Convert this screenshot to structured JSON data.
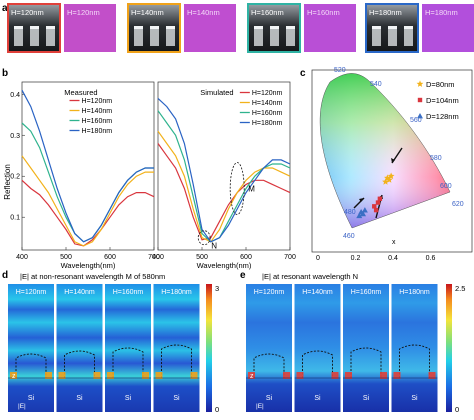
{
  "panel_labels": {
    "a": "a",
    "b": "b",
    "c": "c",
    "d": "d",
    "e": "e"
  },
  "panel_a": {
    "items": [
      {
        "sem_label": "H=120nm",
        "color_label": "H=120nm",
        "frame": "#e0403a",
        "swatch": "#c24fc9"
      },
      {
        "sem_label": "H=140nm",
        "color_label": "H=140nm",
        "frame": "#f0a21a",
        "swatch": "#bf4ed0"
      },
      {
        "sem_label": "H=160nm",
        "color_label": "H=160nm",
        "frame": "#2fb3a4",
        "swatch": "#b94fd6"
      },
      {
        "sem_label": "H=180nm",
        "color_label": "H=180nm",
        "frame": "#2a68c8",
        "swatch": "#b24fdc"
      }
    ]
  },
  "chart_data": [
    {
      "type": "line",
      "subtitle": "Measured",
      "ylabel": "Reflection",
      "xlabel": "Wavelength(nm)",
      "xlim": [
        400,
        700
      ],
      "ylim": [
        0.02,
        0.43
      ],
      "xticks": [
        400,
        500,
        600,
        700
      ],
      "yticks": [
        0.1,
        0.2,
        0.3,
        0.4
      ],
      "legend_position": "top-right",
      "series": [
        {
          "name": "H=120nm",
          "color": "#d9363e",
          "x": [
            400,
            420,
            440,
            460,
            480,
            500,
            520,
            540,
            560,
            580,
            600,
            620,
            640,
            660,
            680,
            700
          ],
          "y": [
            0.19,
            0.17,
            0.155,
            0.13,
            0.1,
            0.07,
            0.035,
            0.03,
            0.045,
            0.07,
            0.1,
            0.13,
            0.15,
            0.16,
            0.16,
            0.15
          ]
        },
        {
          "name": "H=140nm",
          "color": "#f2b21b",
          "x": [
            400,
            420,
            440,
            460,
            480,
            500,
            520,
            540,
            560,
            580,
            600,
            620,
            640,
            660,
            680,
            700
          ],
          "y": [
            0.25,
            0.22,
            0.19,
            0.16,
            0.12,
            0.08,
            0.04,
            0.03,
            0.04,
            0.07,
            0.11,
            0.15,
            0.18,
            0.2,
            0.21,
            0.21
          ]
        },
        {
          "name": "H=160nm",
          "color": "#2fb38e",
          "x": [
            400,
            420,
            440,
            460,
            480,
            500,
            520,
            540,
            560,
            580,
            600,
            620,
            640,
            660,
            680,
            700
          ],
          "y": [
            0.33,
            0.31,
            0.27,
            0.21,
            0.15,
            0.1,
            0.06,
            0.04,
            0.05,
            0.08,
            0.12,
            0.16,
            0.19,
            0.21,
            0.22,
            0.22
          ]
        },
        {
          "name": "H=180nm",
          "color": "#2a63c4",
          "x": [
            400,
            420,
            440,
            460,
            480,
            500,
            520,
            540,
            560,
            580,
            600,
            620,
            640,
            660,
            680,
            700
          ],
          "y": [
            0.41,
            0.37,
            0.31,
            0.24,
            0.17,
            0.11,
            0.06,
            0.04,
            0.05,
            0.08,
            0.12,
            0.16,
            0.19,
            0.21,
            0.22,
            0.22
          ]
        }
      ]
    },
    {
      "type": "line",
      "subtitle": "Simulated",
      "xlabel": "Wavelength(nm)",
      "xlim": [
        400,
        700
      ],
      "ylim": [
        0.02,
        0.43
      ],
      "xticks": [
        400,
        500,
        600,
        700
      ],
      "legend_position": "top-right",
      "annotations": [
        "M",
        "N"
      ],
      "series": [
        {
          "name": "H=120nm",
          "color": "#d9363e",
          "x": [
            400,
            420,
            440,
            460,
            480,
            500,
            520,
            540,
            560,
            580,
            600,
            620,
            640,
            660,
            680,
            700
          ],
          "y": [
            0.28,
            0.25,
            0.22,
            0.17,
            0.1,
            0.045,
            0.05,
            0.09,
            0.13,
            0.16,
            0.18,
            0.19,
            0.19,
            0.18,
            0.17,
            0.16
          ]
        },
        {
          "name": "H=140nm",
          "color": "#f2b21b",
          "x": [
            400,
            420,
            440,
            460,
            480,
            500,
            520,
            540,
            560,
            580,
            600,
            620,
            640,
            660,
            680,
            700
          ],
          "y": [
            0.31,
            0.28,
            0.25,
            0.2,
            0.12,
            0.05,
            0.04,
            0.07,
            0.12,
            0.16,
            0.19,
            0.21,
            0.22,
            0.22,
            0.21,
            0.2
          ]
        },
        {
          "name": "H=160nm",
          "color": "#2fb38e",
          "x": [
            400,
            420,
            440,
            460,
            480,
            500,
            520,
            540,
            560,
            580,
            600,
            620,
            640,
            660,
            680,
            700
          ],
          "y": [
            0.36,
            0.33,
            0.3,
            0.24,
            0.15,
            0.06,
            0.04,
            0.05,
            0.09,
            0.13,
            0.17,
            0.2,
            0.22,
            0.23,
            0.23,
            0.22
          ]
        },
        {
          "name": "H=180nm",
          "color": "#2a63c4",
          "x": [
            400,
            420,
            440,
            460,
            480,
            500,
            520,
            540,
            560,
            580,
            600,
            620,
            640,
            660,
            680,
            700
          ],
          "y": [
            0.39,
            0.37,
            0.34,
            0.28,
            0.18,
            0.07,
            0.04,
            0.05,
            0.08,
            0.12,
            0.16,
            0.19,
            0.22,
            0.24,
            0.24,
            0.23
          ]
        }
      ]
    },
    {
      "type": "scatter",
      "xlabel": "x",
      "xlim": [
        0,
        0.8
      ],
      "ylim": [
        0,
        0.9
      ],
      "xticks": [
        0,
        0.2,
        0.4,
        0.6
      ],
      "locus_labels": [
        "460",
        "480",
        "520",
        "540",
        "560",
        "580",
        "600",
        "620"
      ],
      "legend_position": "top-right",
      "series": [
        {
          "name": "D=80nm",
          "color": "#f2b21b",
          "marker": "star",
          "x": [
            0.36,
            0.37,
            0.38,
            0.39
          ],
          "y": [
            0.34,
            0.36,
            0.35,
            0.37
          ]
        },
        {
          "name": "D=104nm",
          "color": "#d9363e",
          "marker": "square",
          "x": [
            0.3,
            0.31,
            0.32,
            0.33
          ],
          "y": [
            0.21,
            0.19,
            0.23,
            0.25
          ]
        },
        {
          "name": "D=128nm",
          "color": "#3b6fc4",
          "marker": "triangle",
          "x": [
            0.22,
            0.23,
            0.24,
            0.25
          ],
          "y": [
            0.16,
            0.18,
            0.17,
            0.19
          ]
        }
      ]
    }
  ],
  "panel_d": {
    "title": "|E| at non-resonant wavelength M of 580nm",
    "labels": [
      "H=120nm",
      "H=140nm",
      "H=160nm",
      "H=180nm"
    ],
    "scale_max": "3",
    "scale_min": "0",
    "axis_label": "z",
    "field_label": "|E|",
    "substrate": "Si"
  },
  "panel_e": {
    "title": "|E| at resonant wavelength N",
    "labels": [
      "H=120nm",
      "H=140nm",
      "H=160nm",
      "H=180nm"
    ],
    "scale_max": "2.5",
    "scale_min": "0",
    "axis_label": "z",
    "field_label": "|E|",
    "substrate": "Si"
  }
}
